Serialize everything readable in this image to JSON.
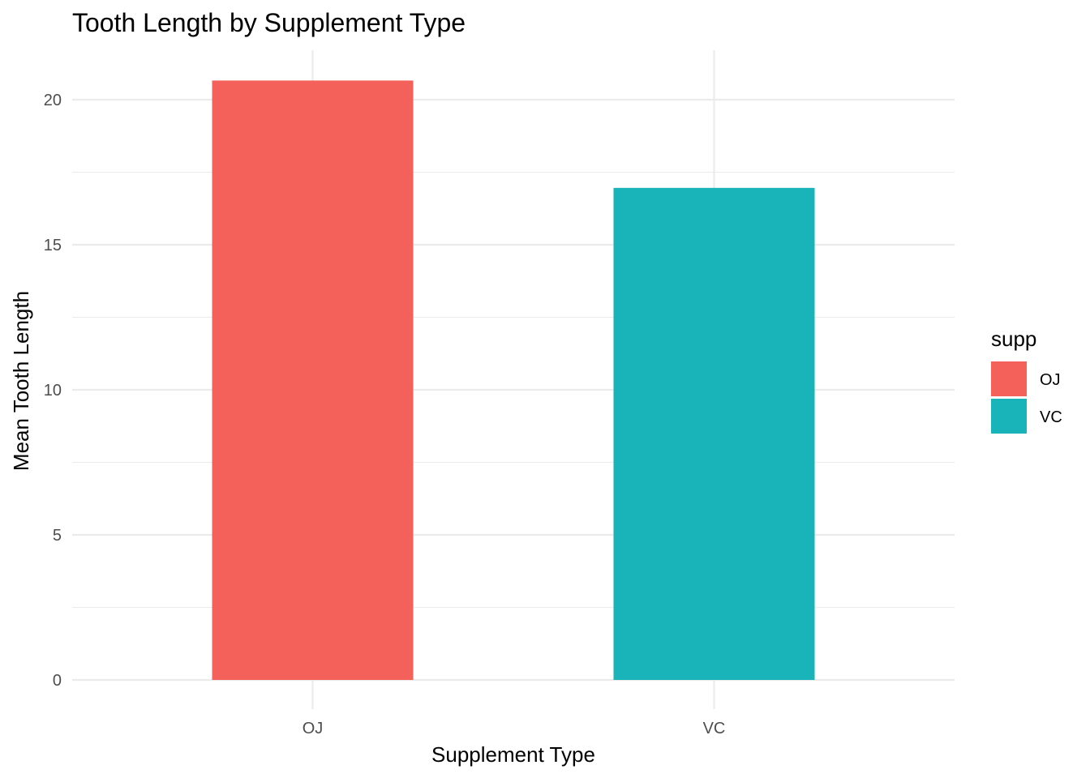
{
  "chart_data": {
    "type": "bar",
    "title": "Tooth Length by Supplement Type",
    "xlabel": "Supplement Type",
    "ylabel": "Mean Tooth Length",
    "categories": [
      "OJ",
      "VC"
    ],
    "values": [
      20.66,
      16.96
    ],
    "colors": [
      "#F8766D",
      "#00BFC4"
    ],
    "bar_colors": [
      "#F4615A",
      "#19B3BA"
    ],
    "ylim": [
      0,
      20.66
    ],
    "y_ticks": [
      0,
      5,
      10,
      15,
      20
    ],
    "y_tick_labels": [
      "0",
      "5",
      "10",
      "15",
      "20"
    ],
    "grid": true,
    "legend": {
      "title": "supp",
      "position": "right",
      "items": [
        {
          "label": "OJ",
          "color": "#F4615A"
        },
        {
          "label": "VC",
          "color": "#19B3BA"
        }
      ]
    }
  }
}
